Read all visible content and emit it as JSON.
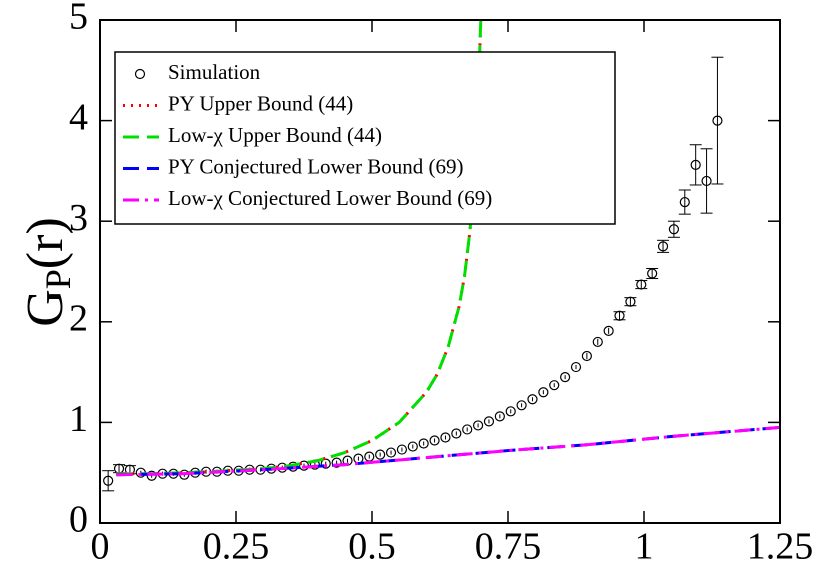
{
  "chart_data": {
    "type": "scatter",
    "ylabel": [
      "G",
      "P",
      "(r)"
    ],
    "xlim": [
      0,
      1.25
    ],
    "ylim": [
      0,
      5
    ],
    "xticks": [
      0,
      0.25,
      0.5,
      0.75,
      1,
      1.25
    ],
    "yticks": [
      0,
      1,
      2,
      3,
      4,
      5
    ],
    "legend": "upper left",
    "series": [
      {
        "name": "Simulation",
        "color": "#000000",
        "kind": "points",
        "x": [
          0.015,
          0.035,
          0.055,
          0.075,
          0.095,
          0.115,
          0.135,
          0.155,
          0.175,
          0.195,
          0.215,
          0.235,
          0.255,
          0.275,
          0.295,
          0.315,
          0.335,
          0.355,
          0.375,
          0.395,
          0.415,
          0.435,
          0.455,
          0.475,
          0.495,
          0.515,
          0.535,
          0.555,
          0.575,
          0.595,
          0.615,
          0.635,
          0.655,
          0.675,
          0.695,
          0.715,
          0.735,
          0.755,
          0.775,
          0.795,
          0.815,
          0.835,
          0.855,
          0.875,
          0.895,
          0.915,
          0.935,
          0.955,
          0.975,
          0.995,
          1.015,
          1.035,
          1.055,
          1.075,
          1.095,
          1.115,
          1.135
        ],
        "values": [
          0.42,
          0.54,
          0.53,
          0.5,
          0.47,
          0.49,
          0.49,
          0.48,
          0.5,
          0.51,
          0.51,
          0.52,
          0.52,
          0.53,
          0.53,
          0.54,
          0.55,
          0.56,
          0.57,
          0.58,
          0.59,
          0.6,
          0.62,
          0.64,
          0.66,
          0.68,
          0.7,
          0.73,
          0.76,
          0.79,
          0.82,
          0.85,
          0.89,
          0.93,
          0.97,
          1.01,
          1.06,
          1.11,
          1.17,
          1.23,
          1.3,
          1.37,
          1.45,
          1.55,
          1.66,
          1.8,
          1.91,
          2.06,
          2.2,
          2.37,
          2.48,
          2.75,
          2.92,
          3.19,
          3.56,
          3.4,
          4.0
        ],
        "errors": [
          0.1,
          0.04,
          0.04,
          0.02,
          0.02,
          0.02,
          0.02,
          0.02,
          0.02,
          0.02,
          0.02,
          0.02,
          0.02,
          0.02,
          0.02,
          0.02,
          0.02,
          0.02,
          0.02,
          0.02,
          0.02,
          0.02,
          0.02,
          0.02,
          0.02,
          0.02,
          0.02,
          0.02,
          0.02,
          0.02,
          0.02,
          0.02,
          0.02,
          0.02,
          0.02,
          0.02,
          0.02,
          0.02,
          0.02,
          0.02,
          0.02,
          0.02,
          0.02,
          0.02,
          0.03,
          0.03,
          0.03,
          0.04,
          0.04,
          0.04,
          0.05,
          0.06,
          0.08,
          0.12,
          0.2,
          0.32,
          0.63
        ]
      },
      {
        "name": "PY Upper Bound (44)",
        "color": "#ff0000",
        "kind": "dotted",
        "x": [
          0.03,
          0.1,
          0.2,
          0.3,
          0.35,
          0.4,
          0.45,
          0.5,
          0.55,
          0.6,
          0.62,
          0.64,
          0.66,
          0.67,
          0.68,
          0.69,
          0.695,
          0.7
        ],
        "values": [
          0.49,
          0.49,
          0.51,
          0.54,
          0.57,
          0.62,
          0.7,
          0.82,
          1.0,
          1.3,
          1.48,
          1.75,
          2.15,
          2.45,
          2.9,
          3.6,
          4.2,
          5.0
        ]
      },
      {
        "name": "Low-χ Upper Bound (44)",
        "color": "#00e000",
        "kind": "dashed",
        "x": [
          0.03,
          0.1,
          0.2,
          0.3,
          0.35,
          0.4,
          0.45,
          0.5,
          0.55,
          0.6,
          0.62,
          0.64,
          0.66,
          0.67,
          0.68,
          0.69,
          0.695,
          0.7
        ],
        "values": [
          0.49,
          0.49,
          0.51,
          0.54,
          0.57,
          0.62,
          0.7,
          0.82,
          1.0,
          1.3,
          1.48,
          1.75,
          2.15,
          2.45,
          2.9,
          3.6,
          4.2,
          5.0
        ]
      },
      {
        "name": "PY Conjectured Lower Bound (69)",
        "color": "#0000ff",
        "kind": "dashed",
        "x": [
          0.03,
          0.15,
          0.3,
          0.45,
          0.6,
          0.75,
          0.9,
          1.05,
          1.25
        ],
        "values": [
          0.48,
          0.49,
          0.53,
          0.58,
          0.65,
          0.72,
          0.78,
          0.86,
          0.95
        ]
      },
      {
        "name": "Low-χ Conjectured Lower Bound (69)",
        "color": "#ff00ff",
        "kind": "dashdot",
        "x": [
          0.03,
          0.15,
          0.3,
          0.45,
          0.6,
          0.75,
          0.9,
          1.05,
          1.25
        ],
        "values": [
          0.48,
          0.49,
          0.53,
          0.58,
          0.65,
          0.72,
          0.78,
          0.86,
          0.95
        ]
      }
    ]
  }
}
